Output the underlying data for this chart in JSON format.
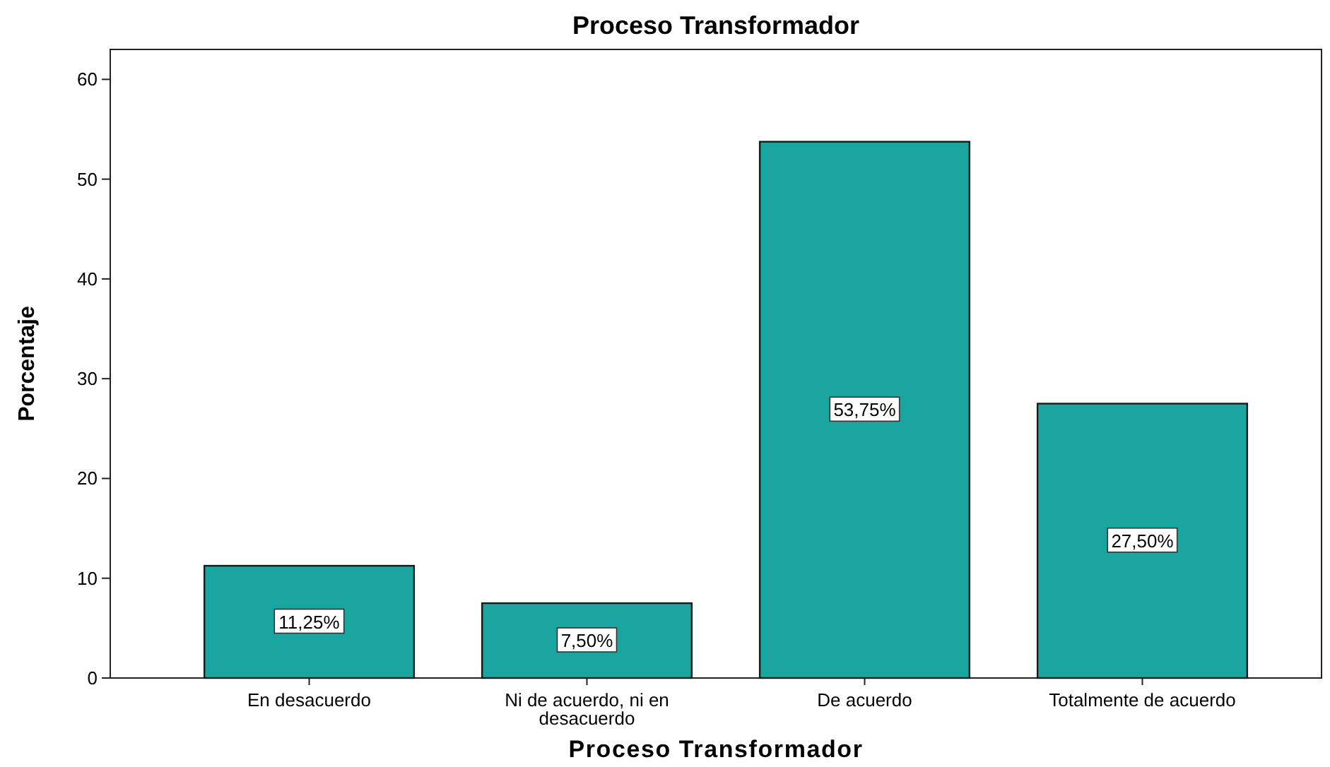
{
  "chart_data": {
    "type": "bar",
    "title": "Proceso Transformador",
    "xlabel": "Proceso Transformador",
    "ylabel": "Porcentaje",
    "categories": [
      "En desacuerdo",
      "Ni de acuerdo, ni en desacuerdo",
      "De acuerdo",
      "Totalmente de acuerdo"
    ],
    "values": [
      11.25,
      7.5,
      53.75,
      27.5
    ],
    "value_labels": [
      "11,25%",
      "7,50%",
      "53,75%",
      "27,50%"
    ],
    "color": "#1aa5a0",
    "ylim": [
      0,
      63
    ],
    "yticks": [
      0,
      10,
      20,
      30,
      40,
      50,
      60
    ],
    "grid": false
  }
}
